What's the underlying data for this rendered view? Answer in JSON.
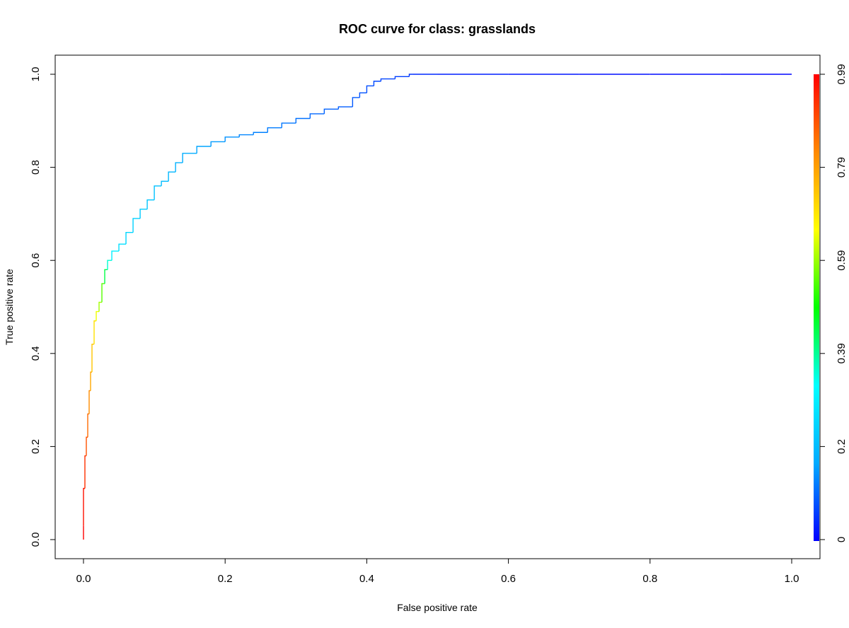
{
  "chart_data": {
    "type": "line",
    "title": "ROC curve for class: grasslands",
    "xlabel": "False positive rate",
    "ylabel": "True positive rate",
    "xlim": [
      0,
      1
    ],
    "ylim": [
      0,
      1
    ],
    "x_ticks": [
      "0.0",
      "0.2",
      "0.4",
      "0.6",
      "0.8",
      "1.0"
    ],
    "y_ticks": [
      "0.0",
      "0.2",
      "0.4",
      "0.6",
      "0.8",
      "1.0"
    ],
    "grid": false,
    "colorbar": {
      "label_position": "right",
      "tick_labels": [
        "0",
        "0.2",
        "0.39",
        "0.59",
        "0.79",
        "0.99"
      ],
      "colors": [
        "#0000ff",
        "#00aaff",
        "#00ffff",
        "#00ff00",
        "#ffff00",
        "#ff8800",
        "#ff0000"
      ]
    },
    "series": [
      {
        "x": [
          0.0,
          0.0,
          0.002,
          0.004,
          0.006,
          0.008,
          0.01,
          0.012,
          0.015,
          0.018,
          0.022,
          0.026,
          0.03,
          0.034,
          0.04,
          0.05,
          0.06,
          0.07,
          0.08,
          0.09,
          0.1,
          0.11,
          0.12,
          0.13,
          0.14,
          0.16,
          0.18,
          0.2,
          0.22,
          0.24,
          0.26,
          0.28,
          0.3,
          0.32,
          0.34,
          0.36,
          0.38,
          0.39,
          0.4,
          0.41,
          0.42,
          0.44,
          0.46,
          0.465,
          0.5,
          0.6,
          0.7,
          0.8,
          0.9,
          1.0
        ],
        "y": [
          0.0,
          0.03,
          0.11,
          0.18,
          0.22,
          0.27,
          0.32,
          0.36,
          0.42,
          0.47,
          0.49,
          0.51,
          0.55,
          0.58,
          0.6,
          0.62,
          0.635,
          0.66,
          0.69,
          0.71,
          0.73,
          0.76,
          0.77,
          0.79,
          0.81,
          0.83,
          0.845,
          0.855,
          0.865,
          0.87,
          0.875,
          0.885,
          0.895,
          0.905,
          0.915,
          0.925,
          0.93,
          0.95,
          0.96,
          0.975,
          0.985,
          0.99,
          0.995,
          1.0,
          1.0,
          1.0,
          1.0,
          1.0,
          1.0,
          1.0
        ],
        "threshold": [
          0.99,
          0.97,
          0.93,
          0.89,
          0.86,
          0.82,
          0.78,
          0.74,
          0.7,
          0.65,
          0.6,
          0.55,
          0.45,
          0.36,
          0.3,
          0.27,
          0.25,
          0.24,
          0.23,
          0.22,
          0.21,
          0.2,
          0.19,
          0.18,
          0.17,
          0.16,
          0.15,
          0.14,
          0.13,
          0.125,
          0.12,
          0.115,
          0.11,
          0.1,
          0.095,
          0.09,
          0.085,
          0.08,
          0.075,
          0.07,
          0.065,
          0.06,
          0.05,
          0.04,
          0.03,
          0.02,
          0.015,
          0.01,
          0.005,
          0.0
        ]
      }
    ]
  }
}
